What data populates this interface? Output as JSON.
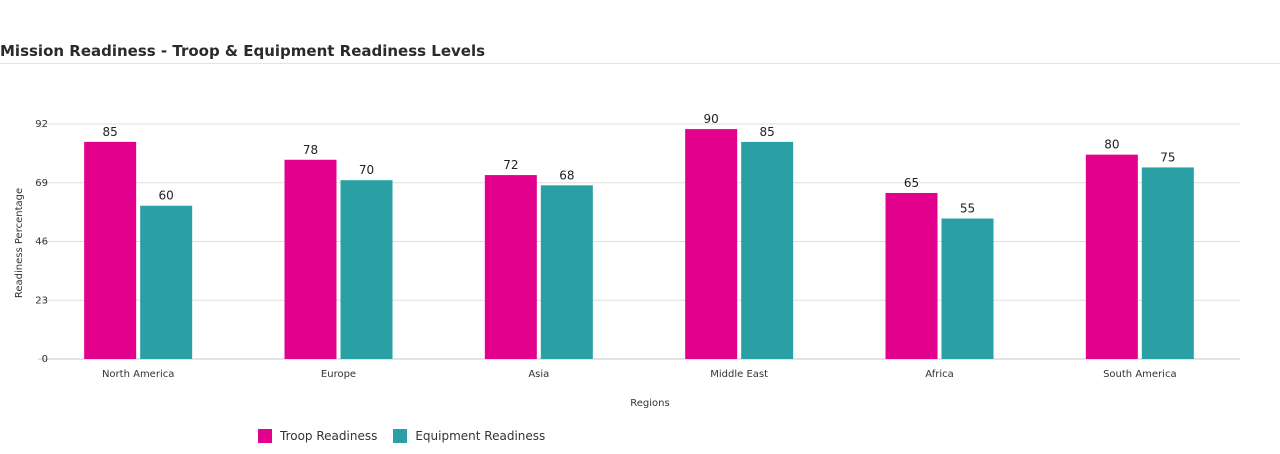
{
  "colors": {
    "troop": "#e3008c",
    "equipment": "#2aa0a4"
  },
  "chart_data": {
    "type": "bar",
    "title": "Mission Readiness - Troop & Equipment Readiness Levels",
    "xlabel": "Regions",
    "ylabel": "Readiness Percentage",
    "categories": [
      "North America",
      "Europe",
      "Asia",
      "Middle East",
      "Africa",
      "South America"
    ],
    "series": [
      {
        "name": "Troop Readiness",
        "color": "#e3008c",
        "values": [
          85,
          78,
          72,
          90,
          65,
          80
        ]
      },
      {
        "name": "Equipment Readiness",
        "color": "#2aa0a4",
        "values": [
          60,
          70,
          68,
          85,
          55,
          75
        ]
      }
    ],
    "ylim": [
      0,
      92
    ],
    "yticks": [
      0,
      23,
      46,
      69,
      92
    ],
    "grid": true,
    "legend_position": "bottom-left"
  }
}
